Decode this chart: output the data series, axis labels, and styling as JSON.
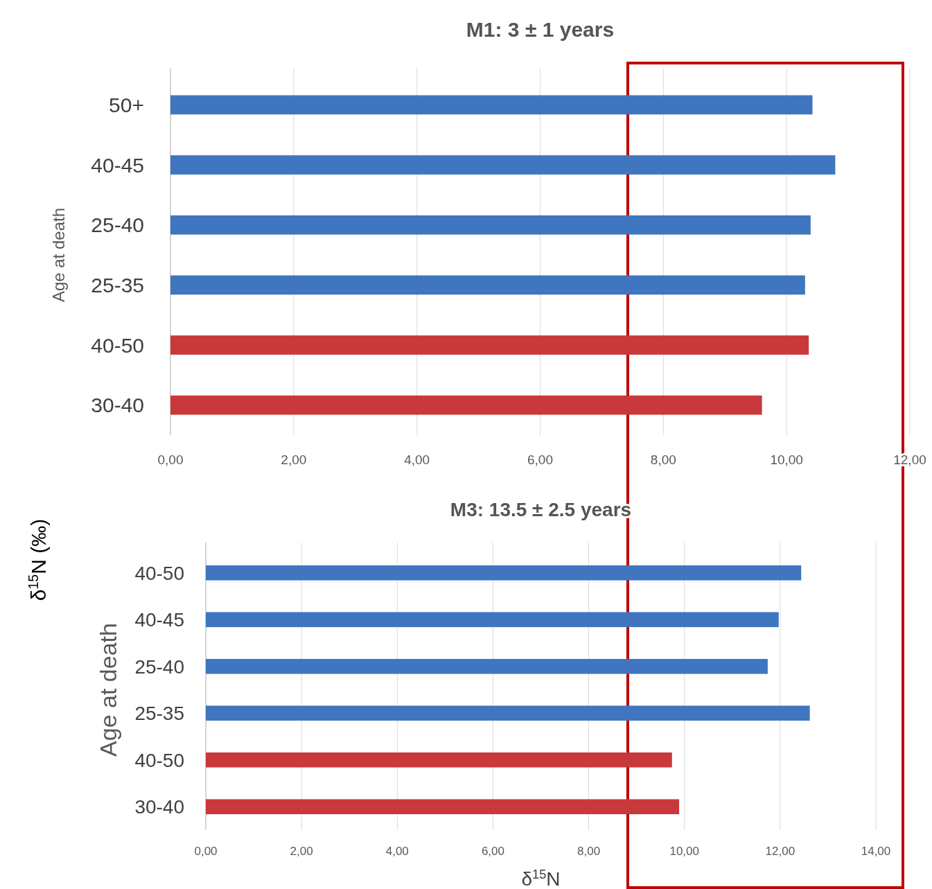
{
  "chart_data": [
    {
      "type": "bar",
      "orientation": "horizontal",
      "title": "M1: 3 ± 1 years",
      "ylabel": "Age at death",
      "categories": [
        "50+",
        "40-45",
        "25-40",
        "25-35",
        "40-50",
        "30-40"
      ],
      "values": [
        10.42,
        10.79,
        10.39,
        10.3,
        10.36,
        9.6
      ],
      "colors": [
        "#3f76bf",
        "#3f76bf",
        "#3f76bf",
        "#3f76bf",
        "#c9383a",
        "#c9383a"
      ],
      "xlim": [
        0,
        12
      ],
      "xticks": [
        {
          "value": 0,
          "label": "0,00"
        },
        {
          "value": 2,
          "label": "2,00"
        },
        {
          "value": 4,
          "label": "4,00"
        },
        {
          "value": 6,
          "label": "6,00"
        },
        {
          "value": 8,
          "label": "8,00"
        },
        {
          "value": 10,
          "label": "10,00"
        },
        {
          "value": 12,
          "label": "12,00"
        }
      ],
      "grid": "x"
    },
    {
      "type": "bar",
      "orientation": "horizontal",
      "title": "M3: 13.5 ± 2.5 years",
      "ylabel": "Age at death",
      "xlabel": "δ$^{15}$N",
      "annotations": [
        "δ$^{15}$N (‰)"
      ],
      "categories": [
        "40-50",
        "40-45",
        "25-40",
        "25-35",
        "40-50",
        "30-40"
      ],
      "values": [
        12.44,
        11.97,
        11.74,
        12.62,
        9.74,
        9.89
      ],
      "colors": [
        "#3f76bf",
        "#3f76bf",
        "#3f76bf",
        "#3f76bf",
        "#c9383a",
        "#c9383a"
      ],
      "xlim": [
        0,
        14
      ],
      "xticks": [
        {
          "value": 0,
          "label": "0,00"
        },
        {
          "value": 2,
          "label": "2,00"
        },
        {
          "value": 4,
          "label": "4,00"
        },
        {
          "value": 6,
          "label": "6,00"
        },
        {
          "value": 8,
          "label": "8,00"
        },
        {
          "value": 10,
          "label": "10,00"
        },
        {
          "value": 12,
          "label": "12,00"
        },
        {
          "value": 14,
          "label": "14,00"
        }
      ],
      "grid": "x"
    }
  ]
}
